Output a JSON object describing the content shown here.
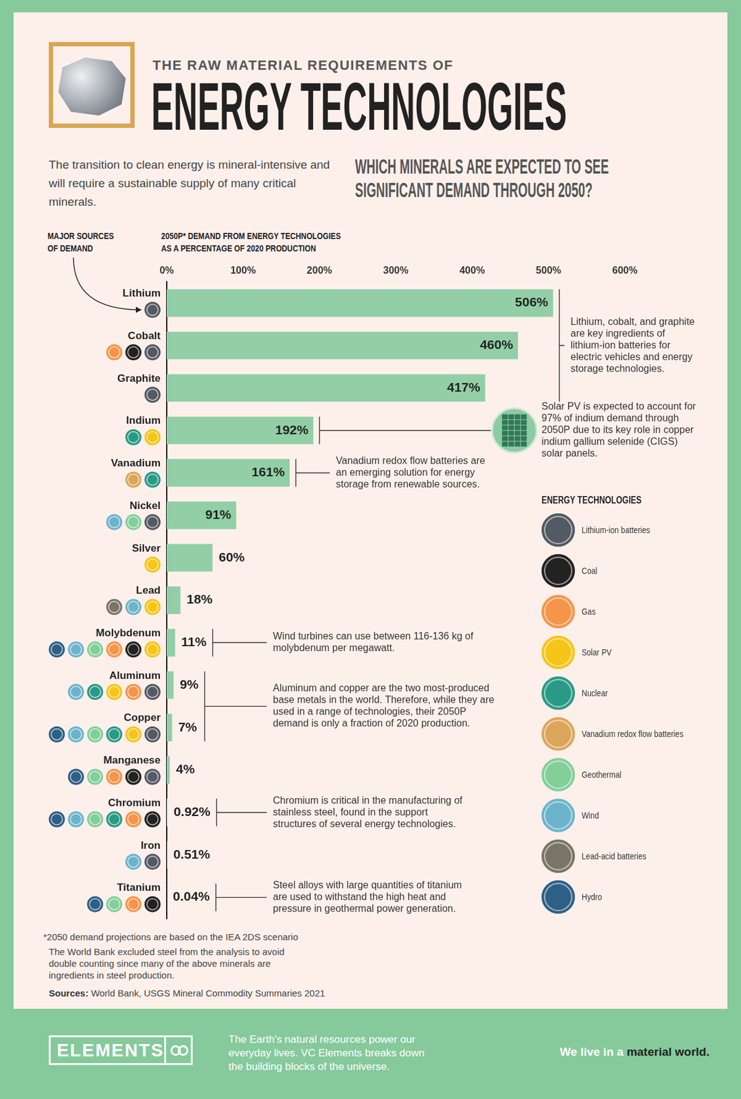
{
  "header": {
    "kicker": "THE RAW MATERIAL REQUIREMENTS OF",
    "title": "ENERGY TECHNOLOGIES",
    "intro": "The transition to clean energy is mineral-intensive and will require a sustainable supply of many critical minerals.",
    "question": "WHICH MINERALS ARE EXPECTED TO SEE SIGNIFICANT DEMAND THROUGH 2050?"
  },
  "chart_data": {
    "type": "bar",
    "orientation": "horizontal",
    "x_label": "2050P* DEMAND FROM ENERGY TECHNOLOGIES AS A PERCENTAGE OF 2020 PRODUCTION",
    "y_label": "MAJOR SOURCES OF DEMAND",
    "categories": [
      "Lithium",
      "Cobalt",
      "Graphite",
      "Indium",
      "Vanadium",
      "Nickel",
      "Silver",
      "Lead",
      "Molybdenum",
      "Aluminum",
      "Copper",
      "Manganese",
      "Chromium",
      "Iron",
      "Titanium"
    ],
    "values": [
      506,
      460,
      417,
      192,
      161,
      91,
      60,
      18,
      11,
      9,
      7,
      4,
      0.92,
      0.51,
      0.04
    ],
    "value_labels": [
      "506%",
      "460%",
      "417%",
      "192%",
      "161%",
      "91%",
      "60%",
      "18%",
      "11%",
      "9%",
      "7%",
      "4%",
      "0.92%",
      "0.51%",
      "0.04%"
    ],
    "data_labels": true,
    "color": "#92cfa6",
    "xlim": [
      0,
      600
    ],
    "xticks": [
      {
        "value": 0,
        "label": "0%"
      },
      {
        "value": 100,
        "label": "100%"
      },
      {
        "value": 200,
        "label": "200%"
      },
      {
        "value": 300,
        "label": "300%"
      },
      {
        "value": 400,
        "label": "400%"
      },
      {
        "value": 500,
        "label": "500%"
      },
      {
        "value": 600,
        "label": "600%"
      }
    ],
    "grid": false,
    "sources": [
      [
        "Lithium-ion batteries"
      ],
      [
        "Gas",
        "Coal",
        "Lithium-ion batteries"
      ],
      [
        "Lithium-ion batteries"
      ],
      [
        "Nuclear",
        "Solar PV"
      ],
      [
        "Vanadium redox flow batteries",
        "Nuclear"
      ],
      [
        "Wind",
        "Geothermal",
        "Lithium-ion batteries"
      ],
      [
        "Solar PV"
      ],
      [
        "Lead-acid batteries",
        "Wind",
        "Solar PV"
      ],
      [
        "Hydro",
        "Wind",
        "Geothermal",
        "Gas",
        "Coal",
        "Solar PV"
      ],
      [
        "Wind",
        "Nuclear",
        "Solar PV",
        "Gas",
        "Lithium-ion batteries"
      ],
      [
        "Hydro",
        "Wind",
        "Geothermal",
        "Nuclear",
        "Solar PV",
        "Lithium-ion batteries"
      ],
      [
        "Hydro",
        "Geothermal",
        "Gas",
        "Coal",
        "Lithium-ion batteries"
      ],
      [
        "Hydro",
        "Wind",
        "Geothermal",
        "Nuclear",
        "Gas",
        "Coal"
      ],
      [
        "Wind",
        "Lithium-ion batteries"
      ],
      [
        "Hydro",
        "Geothermal",
        "Gas",
        "Coal"
      ]
    ],
    "technologies_title": "ENERGY TECHNOLOGIES",
    "technologies": [
      {
        "name": "Lithium-ion batteries",
        "color": "#545a64"
      },
      {
        "name": "Coal",
        "color": "#222222"
      },
      {
        "name": "Gas",
        "color": "#f4954a"
      },
      {
        "name": "Solar PV",
        "color": "#f5c518"
      },
      {
        "name": "Nuclear",
        "color": "#2a9a86"
      },
      {
        "name": "Vanadium redox flow batteries",
        "color": "#dba65a"
      },
      {
        "name": "Geothermal",
        "color": "#82cf9a"
      },
      {
        "name": "Wind",
        "color": "#6cb4cc"
      },
      {
        "name": "Lead-acid batteries",
        "color": "#7a7468"
      },
      {
        "name": "Hydro",
        "color": "#2e5f86"
      }
    ],
    "annotations": [
      {
        "categories": [
          "Lithium",
          "Cobalt",
          "Graphite"
        ],
        "text": "Lithium, cobalt, and graphite are key ingredients of lithium-ion batteries for electric vehicles and energy storage technologies."
      },
      {
        "categories": [
          "Indium"
        ],
        "text": "Solar PV is expected to account for 97% of indium demand through 2050P due to its key role in copper indium gallium selenide (CIGS) solar panels."
      },
      {
        "categories": [
          "Vanadium"
        ],
        "text": "Vanadium redox flow batteries are an emerging solution for energy storage from renewable sources."
      },
      {
        "categories": [
          "Molybdenum"
        ],
        "text": "Wind turbines can use between 116-136 kg of molybdenum per megawatt."
      },
      {
        "categories": [
          "Aluminum",
          "Copper"
        ],
        "text": "Aluminum and copper are the two most-produced base metals in the world. Therefore, while they are used in a range of technologies, their 2050P demand is only a fraction of 2020 production."
      },
      {
        "categories": [
          "Chromium"
        ],
        "text": "Chromium is critical in the manufacturing of stainless steel, found in the support structures of several energy technologies."
      },
      {
        "categories": [
          "Titanium"
        ],
        "text": "Steel alloys with large quantities of titanium are used to withstand the high heat and pressure in geothermal power generation."
      }
    ]
  },
  "footnotes": {
    "note": "*2050 demand projections are based on the IEA 2DS scenario",
    "steel_note": "The World Bank excluded steel from the analysis to avoid double counting since many of the above minerals are ingredients in steel production.",
    "sources_label": "Sources:",
    "sources": "World Bank, USGS Mineral Commodity Summaries 2021"
  },
  "footer": {
    "brand": "ELEMENTS",
    "tagline": "The Earth's natural resources power our everyday lives. VC Elements breaks down the building blocks of the universe.",
    "slogan_start": "We live in a",
    "slogan_end": "material world."
  }
}
